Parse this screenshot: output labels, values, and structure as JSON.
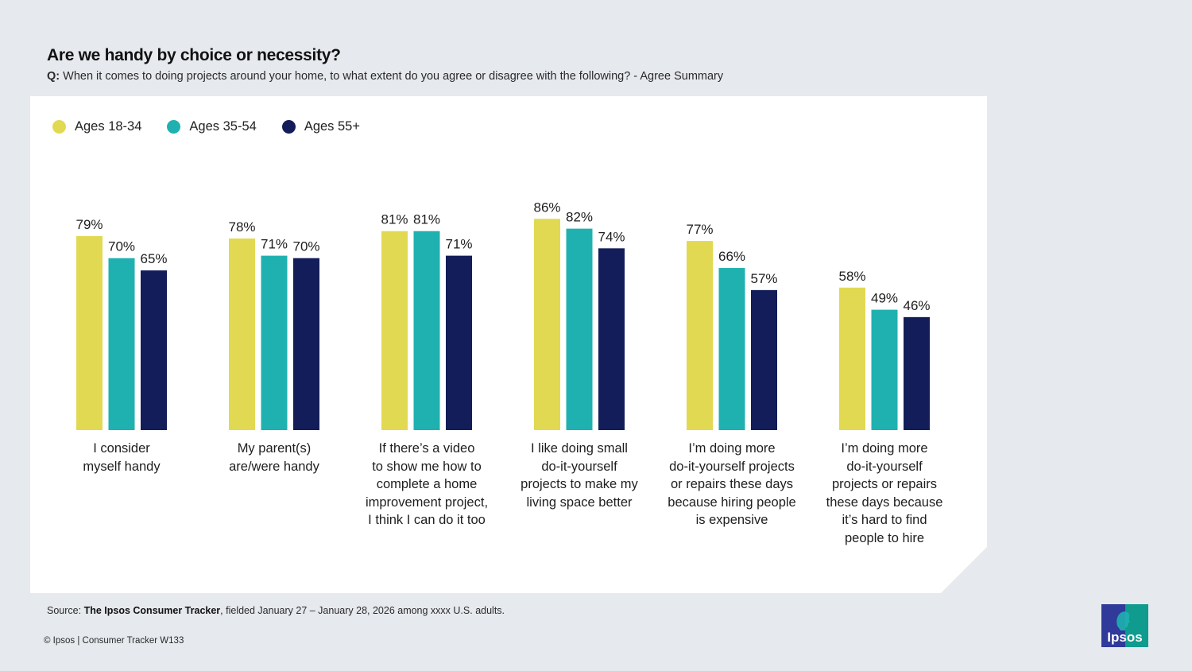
{
  "header": {
    "title": "Are we handy by choice or necessity?",
    "question_prefix": "Q:",
    "question_text": "When it comes to doing projects around your home, to what extent do you agree or disagree with the following? - Agree Summary"
  },
  "footer": {
    "source_prefix": "Source:",
    "source_bold": "The Ipsos Consumer Tracker",
    "source_rest": ", fielded January 27 – January 28, 2026 among xxxx U.S. adults.",
    "copyright": "© Ipsos | Consumer Tracker W133",
    "logo_text": "Ipsos"
  },
  "colors": {
    "ages_18_34": "#e2d952",
    "ages_35_54": "#1fb1b0",
    "ages_55_plus": "#121d5a",
    "logo_left": "#2f3a9a",
    "logo_right": "#0f9b8e"
  },
  "chart_data": {
    "type": "bar",
    "title": "Are we handy by choice or necessity?",
    "xlabel": "",
    "ylabel": "",
    "ylim": [
      0,
      100
    ],
    "grid": false,
    "legend_position": "top-left",
    "value_format": "percent",
    "categories": [
      "I consider\nmyself handy",
      "My parent(s)\nare/were handy",
      "If there’s a video\nto show me how to\ncomplete a home\nimprovement project,\nI think I can do it too",
      "I like doing small\ndo-it-yourself\nprojects to make my\nliving space better",
      "I’m doing more\ndo-it-yourself projects\nor repairs these days\nbecause hiring people\nis expensive",
      "I’m doing more\ndo-it-yourself\nprojects or repairs\nthese days because\nit’s hard to find\npeople to hire"
    ],
    "series": [
      {
        "name": "Ages 18-34",
        "color": "#e2d952",
        "values": [
          79,
          78,
          81,
          86,
          77,
          58
        ]
      },
      {
        "name": "Ages 35-54",
        "color": "#1fb1b0",
        "values": [
          70,
          71,
          81,
          82,
          66,
          49
        ]
      },
      {
        "name": "Ages 55+",
        "color": "#121d5a",
        "values": [
          65,
          70,
          71,
          74,
          57,
          46
        ]
      }
    ]
  }
}
